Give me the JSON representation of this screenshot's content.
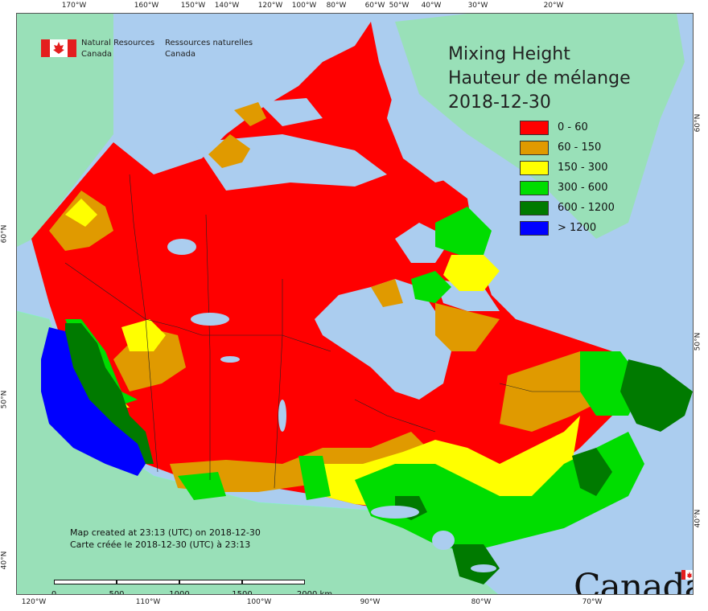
{
  "header": {
    "org_en_line1": "Natural Resources",
    "org_en_line2": "Canada",
    "org_fr_line1": "Ressources naturelles",
    "org_fr_line2": "Canada"
  },
  "title": {
    "en": "Mixing Height",
    "fr": "Hauteur de mélange",
    "date": "2018-12-30"
  },
  "legend": [
    {
      "label": "0 - 60",
      "color": "#ff0000"
    },
    {
      "label": "60 - 150",
      "color": "#e09a00"
    },
    {
      "label": "150 - 300",
      "color": "#ffff00"
    },
    {
      "label": "300 - 600",
      "color": "#00dd00"
    },
    {
      "label": "600 - 1200",
      "color": "#007a00"
    },
    {
      "label": "> 1200",
      "color": "#0000ff"
    }
  ],
  "created": {
    "en": "Map created at 23:13 (UTC) on 2018-12-30",
    "fr": "Carte créée le 2018-12-30 (UTC) à 23:13"
  },
  "scale": {
    "labels": [
      "0",
      "500",
      "1000",
      "1500",
      "2000 km"
    ]
  },
  "graticule": {
    "top": [
      "170°W",
      "160°W",
      "150°W",
      "140°W",
      "120°W",
      "100°W",
      "80°W",
      "60°W",
      "50°W",
      "40°W",
      "30°W",
      "20°W"
    ],
    "bottom": [
      "120°W",
      "110°W",
      "100°W",
      "90°W",
      "80°W",
      "70°W"
    ],
    "left": [
      "60°N",
      "50°N",
      "40°N"
    ],
    "right": [
      "60°N",
      "50°N",
      "40°N"
    ]
  },
  "wordmark": "Canada",
  "colors": {
    "ocean": "#abcdef",
    "land_outside": "#99e0b8"
  }
}
